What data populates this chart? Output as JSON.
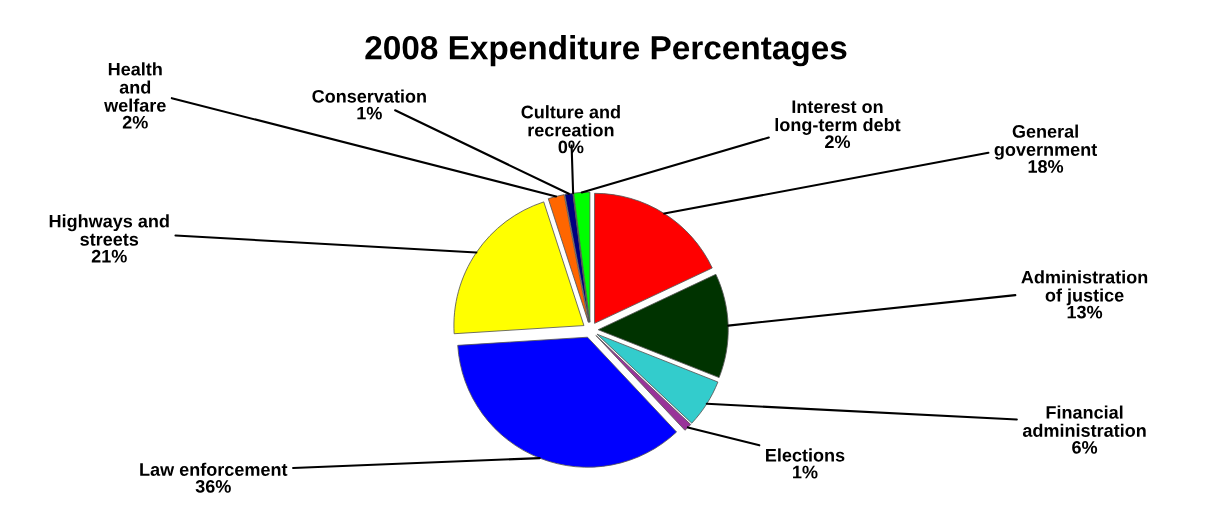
{
  "chart_data": {
    "type": "pie",
    "title": "2008 Expenditure Percentages",
    "categories": [
      "General\ngovernment",
      "Administration\nof justice",
      "Financial\nadministration",
      "Elections",
      "Law enforcement",
      "Highways and\nstreets",
      "Health\nand\nwelfare",
      "Conservation",
      "Culture and\nrecreation",
      "Interest on\nlong-term debt"
    ],
    "values": [
      18,
      13,
      6,
      1,
      36,
      21,
      2,
      1,
      0,
      2
    ],
    "colors": [
      "#ff0000",
      "#003300",
      "#33cccc",
      "#993399",
      "#0000ff",
      "#ffff00",
      "#ff6600",
      "#000080",
      "#008080",
      "#00ff00"
    ],
    "value_labels": [
      "18%",
      "13%",
      "6%",
      "1%",
      "36%",
      "21%",
      "2%",
      "1%",
      "0%",
      "2%"
    ],
    "legend": false
  }
}
